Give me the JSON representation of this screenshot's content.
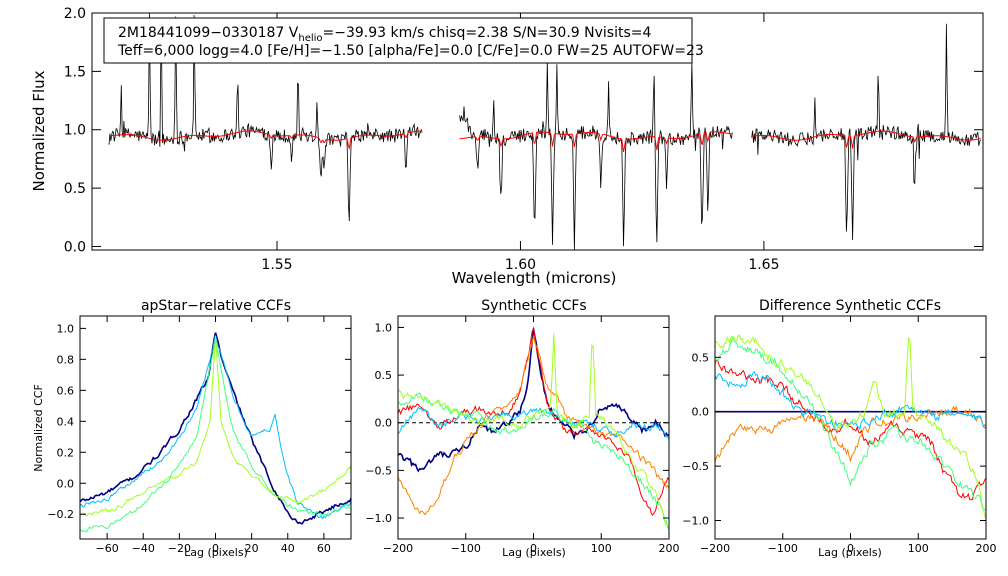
{
  "chart_data": [
    {
      "type": "line",
      "name": "spectrum",
      "xlabel": "Wavelength (microns)",
      "ylabel": "Normalized Flux",
      "xlim": [
        1.512,
        1.695
      ],
      "ylim": [
        -0.03,
        2.0
      ],
      "xticks": [
        1.55,
        1.6,
        1.65
      ],
      "xtick_labels": [
        "1.55",
        "1.60",
        "1.65"
      ],
      "yticks": [
        0.0,
        0.5,
        1.0,
        1.5,
        2.0
      ],
      "ytick_labels": [
        "0.0",
        "0.5",
        "1.0",
        "1.5",
        "2.0"
      ],
      "info_line1_prefix": "2M18441099−0330187  V",
      "info_line1_sub": "helio",
      "info_line1_suffix": "=−39.93 km/s  chisq=2.38  S/N=30.9  Nvisits=4",
      "info_line2": "Teff=6,000 logg=4.0 [Fe/H]=−1.50 [alpha/Fe]=0.0 [C/Fe]=0.0 FW=25 AUTOFW=23",
      "chips": [
        [
          1.5155,
          1.5798
        ],
        [
          1.5875,
          1.6435
        ],
        [
          1.6475,
          1.6945
        ]
      ],
      "series": [
        {
          "name": "observed",
          "color": "#000000"
        },
        {
          "name": "model",
          "color": "#ff0000"
        }
      ],
      "absorption_lines": [
        {
          "x": 1.5648,
          "depth": 0.82
        },
        {
          "x": 1.559,
          "depth": 0.38
        },
        {
          "x": 1.5597,
          "depth": 0.32
        },
        {
          "x": 1.5765,
          "depth": 0.35
        },
        {
          "x": 1.5912,
          "depth": 0.3
        },
        {
          "x": 1.596,
          "depth": 0.55
        },
        {
          "x": 1.6029,
          "depth": 0.98
        },
        {
          "x": 1.6066,
          "depth": 0.98
        },
        {
          "x": 1.6111,
          "depth": 0.97
        },
        {
          "x": 1.6212,
          "depth": 0.98
        },
        {
          "x": 1.628,
          "depth": 0.98
        },
        {
          "x": 1.6373,
          "depth": 0.98
        },
        {
          "x": 1.6385,
          "depth": 0.7
        },
        {
          "x": 1.5488,
          "depth": 0.25
        },
        {
          "x": 1.553,
          "depth": 0.22
        },
        {
          "x": 1.667,
          "depth": 0.98
        },
        {
          "x": 1.6682,
          "depth": 0.96
        },
        {
          "x": 1.681,
          "depth": 0.35
        },
        {
          "x": 1.6165,
          "depth": 0.45
        },
        {
          "x": 1.63,
          "depth": 0.4
        }
      ],
      "emission_spikes": [
        {
          "x": 1.518,
          "height": 0.42
        },
        {
          "x": 1.5238,
          "height": 1.1
        },
        {
          "x": 1.5262,
          "height": 1.1
        },
        {
          "x": 1.5292,
          "height": 1.1
        },
        {
          "x": 1.533,
          "height": 1.1
        },
        {
          "x": 1.5419,
          "height": 0.55
        },
        {
          "x": 1.5543,
          "height": 0.65
        },
        {
          "x": 1.5582,
          "height": 0.35
        },
        {
          "x": 1.5945,
          "height": 0.35
        },
        {
          "x": 1.6055,
          "height": 0.6
        },
        {
          "x": 1.6075,
          "height": 0.65
        },
        {
          "x": 1.6181,
          "height": 0.55
        },
        {
          "x": 1.6274,
          "height": 0.7
        },
        {
          "x": 1.6352,
          "height": 0.72
        },
        {
          "x": 1.6605,
          "height": 0.42
        },
        {
          "x": 1.6735,
          "height": 0.62
        },
        {
          "x": 1.6875,
          "height": 1.1
        }
      ]
    },
    {
      "type": "line",
      "name": "apstar-relative-ccf",
      "title": "apStar−relative CCFs",
      "xlabel": "Lag (pixels)",
      "ylabel": "Normalized CCF",
      "xlim": [
        -75,
        75
      ],
      "ylim": [
        -0.36,
        1.08
      ],
      "xticks": [
        -60,
        -40,
        -20,
        0,
        20,
        40,
        60
      ],
      "xtick_labels": [
        "−60",
        "−40",
        "−20",
        "0",
        "20",
        "40",
        "60"
      ],
      "yticks": [
        -0.2,
        0.0,
        0.2,
        0.4,
        0.6,
        0.8,
        1.0
      ],
      "ytick_labels": [
        "−0.2",
        "0.0",
        "0.2",
        "0.4",
        "0.6",
        "0.8",
        "1.0"
      ],
      "series": [
        {
          "name": "visit1",
          "color": "#000080",
          "x": [
            -75,
            -60,
            -45,
            -30,
            -20,
            -10,
            -4,
            0,
            4,
            10,
            20,
            30,
            40,
            45,
            50,
            60,
            75
          ],
          "values": [
            -0.12,
            -0.06,
            0.04,
            0.2,
            0.35,
            0.55,
            0.68,
            0.98,
            0.78,
            0.58,
            0.28,
            0.02,
            -0.19,
            -0.25,
            -0.24,
            -0.18,
            -0.1
          ]
        },
        {
          "name": "visit2",
          "color": "#00c0ff",
          "x": [
            -75,
            -60,
            -45,
            -30,
            -20,
            -10,
            0,
            10,
            20,
            30,
            33,
            38,
            45,
            55,
            60,
            75
          ],
          "values": [
            -0.15,
            -0.1,
            0.02,
            0.15,
            0.3,
            0.48,
            0.95,
            0.55,
            0.3,
            0.35,
            0.45,
            0.12,
            -0.12,
            -0.2,
            -0.22,
            -0.12
          ]
        },
        {
          "name": "visit3",
          "color": "#40ff80",
          "x": [
            -75,
            -60,
            -45,
            -30,
            -20,
            -10,
            0,
            10,
            20,
            30,
            45,
            60,
            75
          ],
          "values": [
            -0.3,
            -0.28,
            -0.18,
            -0.02,
            0.12,
            0.32,
            0.92,
            0.32,
            0.12,
            -0.05,
            -0.18,
            -0.2,
            -0.15
          ]
        },
        {
          "name": "visit4",
          "color": "#a0ff20",
          "x": [
            -75,
            -60,
            -45,
            -30,
            -20,
            -10,
            -3,
            0,
            3,
            10,
            20,
            30,
            45,
            60,
            75
          ],
          "values": [
            -0.2,
            -0.18,
            -0.1,
            0.0,
            0.05,
            0.15,
            0.4,
            0.95,
            0.4,
            0.15,
            0.05,
            -0.05,
            -0.12,
            -0.05,
            0.1
          ]
        }
      ]
    },
    {
      "type": "line",
      "name": "synthetic-ccf",
      "title": "Synthetic CCFs",
      "xlabel": "Lag (pixels)",
      "ylabel": "",
      "xlim": [
        -200,
        200
      ],
      "ylim": [
        -1.22,
        1.12
      ],
      "xticks": [
        -200,
        -100,
        0,
        100,
        200
      ],
      "xtick_labels": [
        "−200",
        "−100",
        "0",
        "100",
        "200"
      ],
      "yticks": [
        -1.0,
        -0.5,
        0.0,
        0.5,
        1.0
      ],
      "ytick_labels": [
        "−1.0",
        "−0.5",
        "0.0",
        "0.5",
        "1.0"
      ],
      "zero_line": true,
      "series": [
        {
          "name": "visit1",
          "color": "#000080",
          "x": [
            -200,
            -180,
            -160,
            -140,
            -120,
            -100,
            -80,
            -60,
            -40,
            -20,
            -10,
            0,
            10,
            20,
            40,
            60,
            80,
            100,
            120,
            140,
            160,
            180,
            200
          ],
          "values": [
            -0.35,
            -0.45,
            -0.5,
            -0.35,
            -0.35,
            -0.25,
            -0.05,
            -0.12,
            0.0,
            0.1,
            0.35,
            0.98,
            0.55,
            0.2,
            0.0,
            -0.12,
            -0.05,
            0.15,
            0.2,
            0.05,
            -0.1,
            0.0,
            -0.15
          ]
        },
        {
          "name": "visit2",
          "color": "#ff0000",
          "x": [
            -200,
            -170,
            -140,
            -110,
            -80,
            -50,
            -20,
            0,
            20,
            50,
            80,
            110,
            140,
            160,
            175,
            190,
            200
          ],
          "values": [
            0.1,
            0.18,
            -0.05,
            0.1,
            0.15,
            0.05,
            0.3,
            0.98,
            0.2,
            -0.1,
            -0.1,
            -0.15,
            -0.35,
            -0.75,
            -0.95,
            -0.7,
            -0.6
          ]
        },
        {
          "name": "visit3",
          "color": "#ff8000",
          "x": [
            -200,
            -180,
            -160,
            -140,
            -120,
            -100,
            -60,
            -20,
            0,
            20,
            50,
            80,
            110,
            140,
            170,
            200
          ],
          "values": [
            -0.55,
            -0.85,
            -1.0,
            -0.8,
            -0.4,
            -0.2,
            0.1,
            0.35,
            0.9,
            0.4,
            0.05,
            -0.05,
            -0.1,
            -0.2,
            -0.45,
            -0.7
          ]
        },
        {
          "name": "visit4",
          "color": "#00c0ff",
          "x": [
            -200,
            -170,
            -140,
            -110,
            -80,
            -50,
            -20,
            0,
            30,
            60,
            90,
            120,
            150,
            180,
            200
          ],
          "values": [
            -0.1,
            0.15,
            -0.05,
            0.1,
            0.0,
            0.05,
            0.1,
            0.15,
            0.1,
            0.0,
            -0.05,
            -0.1,
            0.0,
            -0.05,
            -0.15
          ]
        },
        {
          "name": "visit5",
          "color": "#40ff80",
          "x": [
            -200,
            -170,
            -140,
            -110,
            -80,
            -50,
            -20,
            0,
            30,
            60,
            90,
            120,
            150,
            180,
            200
          ],
          "values": [
            0.2,
            0.3,
            0.2,
            0.1,
            0.05,
            -0.1,
            -0.05,
            0.05,
            0.1,
            0.0,
            -0.2,
            -0.3,
            -0.55,
            -0.8,
            -1.1
          ]
        },
        {
          "name": "visit6",
          "color": "#a0ff20",
          "x": [
            -200,
            -170,
            -140,
            -110,
            -80,
            -50,
            -20,
            0,
            25,
            30,
            35,
            60,
            82,
            87,
            92,
            120,
            150,
            180,
            200
          ],
          "values": [
            0.3,
            0.25,
            0.2,
            0.1,
            0.0,
            0.05,
            -0.05,
            0.1,
            0.1,
            0.95,
            0.1,
            -0.05,
            0.1,
            0.95,
            0.1,
            -0.1,
            -0.45,
            -0.7,
            -1.15
          ]
        }
      ]
    },
    {
      "type": "line",
      "name": "difference-synthetic-ccf",
      "title": "Difference Synthetic CCFs",
      "xlabel": "Lag (pixels)",
      "ylabel": "",
      "xlim": [
        -200,
        200
      ],
      "ylim": [
        -1.17,
        0.88
      ],
      "xticks": [
        -200,
        -100,
        0,
        100,
        200
      ],
      "xtick_labels": [
        "−200",
        "−100",
        "0",
        "100",
        "200"
      ],
      "yticks": [
        -1.0,
        -0.5,
        0.0,
        0.5
      ],
      "ytick_labels": [
        "−1.0",
        "−0.5",
        "0.0",
        "0.5"
      ],
      "zero_line": true,
      "series": [
        {
          "name": "visit1",
          "color": "#000080",
          "x": [
            -200,
            200
          ],
          "values": [
            0.0,
            0.0
          ]
        },
        {
          "name": "visit2",
          "color": "#ff0000",
          "x": [
            -200,
            -170,
            -140,
            -110,
            -80,
            -50,
            -20,
            0,
            30,
            60,
            90,
            120,
            140,
            160,
            180,
            200
          ],
          "values": [
            0.45,
            0.35,
            0.3,
            0.25,
            0.1,
            -0.05,
            -0.15,
            -0.1,
            -0.3,
            -0.15,
            -0.2,
            -0.3,
            -0.6,
            -0.75,
            -0.8,
            -0.6
          ]
        },
        {
          "name": "visit3",
          "color": "#ff8000",
          "x": [
            -200,
            -170,
            -140,
            -110,
            -80,
            -50,
            -20,
            0,
            30,
            60,
            90,
            120,
            150,
            180,
            200
          ],
          "values": [
            -0.45,
            -0.2,
            -0.15,
            -0.15,
            -0.05,
            -0.05,
            -0.25,
            -0.4,
            -0.1,
            -0.1,
            -0.05,
            0.0,
            0.0,
            0.0,
            -0.15
          ]
        },
        {
          "name": "visit4",
          "color": "#00c0ff",
          "x": [
            -200,
            -170,
            -140,
            -110,
            -80,
            -50,
            -20,
            0,
            30,
            60,
            90,
            120,
            150,
            180,
            200
          ],
          "values": [
            0.3,
            0.25,
            0.35,
            0.25,
            0.0,
            -0.05,
            -0.1,
            -0.15,
            -0.05,
            0.0,
            0.05,
            -0.05,
            0.0,
            -0.05,
            -0.15
          ]
        },
        {
          "name": "visit5",
          "color": "#40ff80",
          "x": [
            -200,
            -170,
            -140,
            -110,
            -80,
            -50,
            -20,
            0,
            30,
            60,
            90,
            120,
            150,
            180,
            200
          ],
          "values": [
            0.5,
            0.65,
            0.55,
            0.45,
            0.25,
            -0.05,
            -0.35,
            -0.65,
            -0.3,
            -0.2,
            -0.25,
            -0.35,
            -0.6,
            -0.75,
            -0.9
          ]
        },
        {
          "name": "visit6",
          "color": "#a0ff20",
          "x": [
            -200,
            -170,
            -140,
            -110,
            -80,
            -50,
            -20,
            0,
            20,
            35,
            50,
            80,
            87,
            92,
            120,
            150,
            180,
            200
          ],
          "values": [
            0.6,
            0.7,
            0.65,
            0.45,
            0.35,
            0.2,
            -0.15,
            -0.1,
            0.0,
            0.3,
            0.0,
            0.0,
            0.8,
            0.0,
            -0.1,
            -0.3,
            -0.5,
            -1.0
          ]
        }
      ]
    }
  ]
}
